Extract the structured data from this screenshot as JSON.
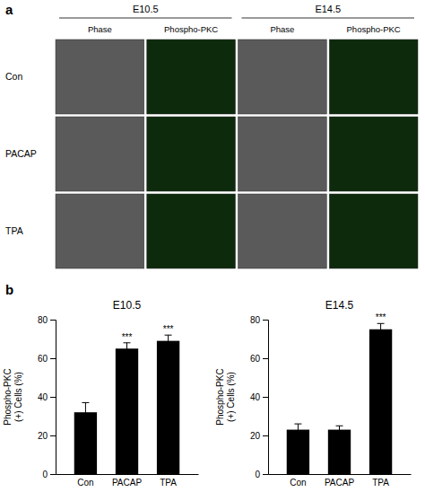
{
  "chart_data": [
    {
      "type": "image_grid",
      "panel": "a",
      "column_groups": [
        "E10.5",
        "E14.5"
      ],
      "columns": [
        "Phase",
        "Phospho-PKC",
        "Phase",
        "Phospho-PKC"
      ],
      "rows": [
        "Con",
        "PACAP",
        "TPA"
      ],
      "colors": [
        "#5a5a5a",
        "#0d2a0d",
        "#5a5a5a",
        "#0d2a0d"
      ]
    },
    {
      "type": "bar",
      "panel": "b",
      "title": "E10.5",
      "categories": [
        "Con",
        "PACAP",
        "TPA"
      ],
      "values": [
        32,
        65,
        69
      ],
      "errors": [
        5,
        3,
        3
      ],
      "significance": [
        null,
        "***",
        "***"
      ],
      "color": "#000000",
      "ylim": [
        0,
        80
      ],
      "yticks": [
        0,
        20,
        40,
        60,
        80
      ],
      "ylabel": "Phospho-PKC\n(+) Cells (%)"
    },
    {
      "type": "bar",
      "title": "E14.5",
      "categories": [
        "Con",
        "PACAP",
        "TPA"
      ],
      "values": [
        23,
        23,
        75
      ],
      "errors": [
        3,
        2,
        3
      ],
      "significance": [
        null,
        null,
        "***"
      ],
      "color": "#000000",
      "ylim": [
        0,
        80
      ],
      "yticks": [
        0,
        20,
        40,
        60,
        80
      ],
      "ylabel": "Phospho-PKC\n(+) Cells (%)"
    }
  ]
}
